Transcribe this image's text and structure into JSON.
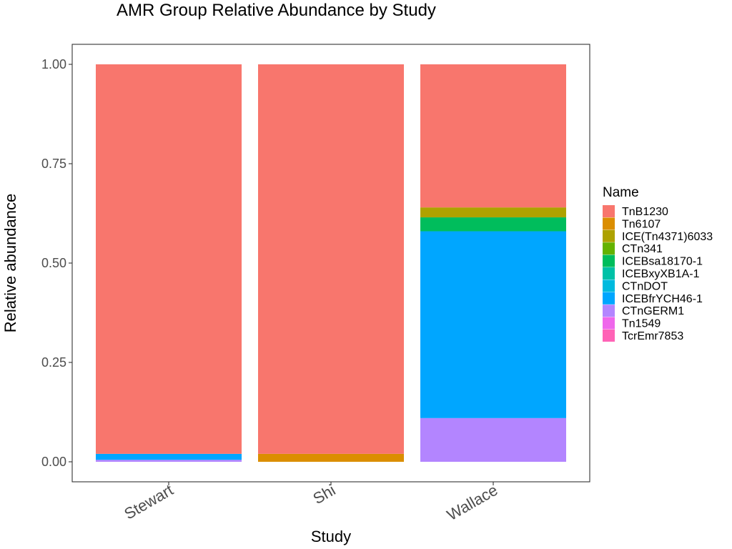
{
  "chart_data": {
    "type": "bar",
    "stacked": true,
    "title": "AMR Group Relative Abundance by Study",
    "xlabel": "Study",
    "ylabel": "Relative abundance",
    "ylim": [
      0,
      1
    ],
    "yticks": [
      "0.00",
      "0.25",
      "0.50",
      "0.75",
      "1.00"
    ],
    "categories": [
      "Stewart",
      "Shi",
      "Wallace"
    ],
    "legend": {
      "title": "Name",
      "placement": "right"
    },
    "series": [
      {
        "name": "TnB1230",
        "color": "#F8766D",
        "values": [
          0.98,
          0.98,
          0.36
        ]
      },
      {
        "name": "Tn6107",
        "color": "#DB8E00",
        "values": [
          0.0,
          0.02,
          0.0
        ]
      },
      {
        "name": "ICE(Tn4371)6033",
        "color": "#AEA200",
        "values": [
          0.0,
          0.0,
          0.025
        ]
      },
      {
        "name": "CTn341",
        "color": "#64B200",
        "values": [
          0.0,
          0.0,
          0.0
        ]
      },
      {
        "name": "ICEBsa18170-1",
        "color": "#00BD5C",
        "values": [
          0.0,
          0.0,
          0.035
        ]
      },
      {
        "name": "ICEBxyXB1A-1",
        "color": "#00C1A7",
        "values": [
          0.0,
          0.0,
          0.0
        ]
      },
      {
        "name": "CTnDOT",
        "color": "#00BADE",
        "values": [
          0.0,
          0.0,
          0.0
        ]
      },
      {
        "name": "ICEBfrYCH46-1",
        "color": "#00A6FF",
        "values": [
          0.015,
          0.0,
          0.47
        ]
      },
      {
        "name": "CTnGERM1",
        "color": "#B385FF",
        "values": [
          0.005,
          0.0,
          0.11
        ]
      },
      {
        "name": "Tn1549",
        "color": "#EF67EB",
        "values": [
          0.0,
          0.0,
          0.0
        ]
      },
      {
        "name": "TcrEmr7853",
        "color": "#FF63B6",
        "values": [
          0.0,
          0.0,
          0.0
        ]
      }
    ]
  }
}
